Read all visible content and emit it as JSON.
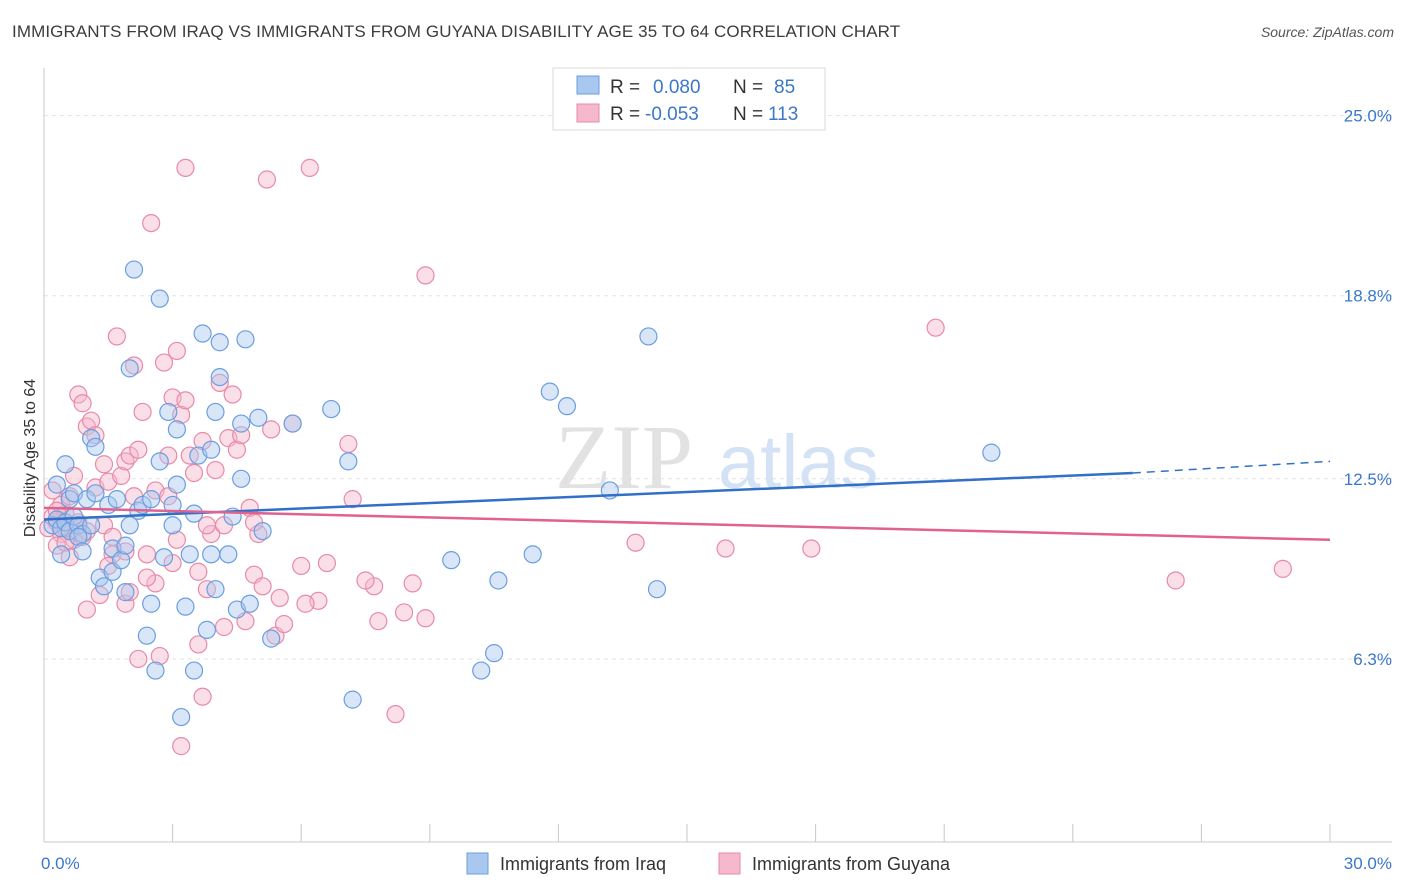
{
  "title": "IMMIGRANTS FROM IRAQ VS IMMIGRANTS FROM GUYANA DISABILITY AGE 35 TO 64 CORRELATION CHART",
  "source": "Source: ZipAtlas.com",
  "watermark": {
    "zip": "ZIP",
    "atlas": "atlas"
  },
  "colors": {
    "iraq_fill": "#a9c8f0",
    "iraq_stroke": "#6b9ee0",
    "iraq_line": "#3270c8",
    "guyana_fill": "#f5b8cc",
    "guyana_stroke": "#e88aa8",
    "guyana_line": "#e0628e",
    "tick_text": "#3b78c8",
    "grid": "#e3e3e3"
  },
  "legend": {
    "row1": {
      "r_label": "R =",
      "r_value": "0.080",
      "n_label": "N =",
      "n_value": "85"
    },
    "row2": {
      "r_label": "R =",
      "r_value": "-0.053",
      "n_label": "N =",
      "n_value": "113"
    }
  },
  "chart_data": {
    "type": "scatter",
    "title": "IMMIGRANTS FROM IRAQ VS IMMIGRANTS FROM GUYANA DISABILITY AGE 35 TO 64 CORRELATION CHART",
    "xlabel": "",
    "ylabel": "Disability Age 35 to 64",
    "xlim": [
      0,
      30
    ],
    "ylim": [
      0,
      26.5
    ],
    "x_tick_labels": [
      "0.0%",
      "30.0%"
    ],
    "y_ticks": [
      6.3,
      12.5,
      18.8,
      25.0
    ],
    "y_tick_labels": [
      "6.3%",
      "12.5%",
      "18.8%",
      "25.0%"
    ],
    "grid": true,
    "legend_position": "top-center",
    "series": [
      {
        "name": "Immigrants from Iraq",
        "r": 0.08,
        "n": 85,
        "trend": {
          "x": [
            0,
            25.4
          ],
          "y": [
            11.1,
            12.7
          ],
          "dashed_to": [
            30,
            13.1
          ]
        },
        "points": [
          [
            0.2,
            10.9
          ],
          [
            0.3,
            11.1
          ],
          [
            0.4,
            10.8
          ],
          [
            0.5,
            11.0
          ],
          [
            0.6,
            10.7
          ],
          [
            0.7,
            11.2
          ],
          [
            0.8,
            10.9
          ],
          [
            0.9,
            10.6
          ],
          [
            0.3,
            12.3
          ],
          [
            0.4,
            9.9
          ],
          [
            0.5,
            13.0
          ],
          [
            0.6,
            11.8
          ],
          [
            0.7,
            12.0
          ],
          [
            0.8,
            10.5
          ],
          [
            1.0,
            11.8
          ],
          [
            1.1,
            10.9
          ],
          [
            1.1,
            13.9
          ],
          [
            1.2,
            13.6
          ],
          [
            1.3,
            9.1
          ],
          [
            1.4,
            8.8
          ],
          [
            1.5,
            11.6
          ],
          [
            1.6,
            10.1
          ],
          [
            1.6,
            9.3
          ],
          [
            1.7,
            11.8
          ],
          [
            1.8,
            9.7
          ],
          [
            1.9,
            8.6
          ],
          [
            1.9,
            10.2
          ],
          [
            2.0,
            10.9
          ],
          [
            2.1,
            19.7
          ],
          [
            2.2,
            11.4
          ],
          [
            2.3,
            11.6
          ],
          [
            2.4,
            7.1
          ],
          [
            2.5,
            8.2
          ],
          [
            2.5,
            11.8
          ],
          [
            2.6,
            5.9
          ],
          [
            2.7,
            18.7
          ],
          [
            2.7,
            13.1
          ],
          [
            2.8,
            9.8
          ],
          [
            2.9,
            14.8
          ],
          [
            3.0,
            11.6
          ],
          [
            3.0,
            10.9
          ],
          [
            3.1,
            14.2
          ],
          [
            3.1,
            12.3
          ],
          [
            3.2,
            4.3
          ],
          [
            3.3,
            8.1
          ],
          [
            3.4,
            9.9
          ],
          [
            3.5,
            11.3
          ],
          [
            3.5,
            5.9
          ],
          [
            3.6,
            13.3
          ],
          [
            3.7,
            17.5
          ],
          [
            3.8,
            7.3
          ],
          [
            3.9,
            13.5
          ],
          [
            4.0,
            14.8
          ],
          [
            4.0,
            8.7
          ],
          [
            4.1,
            17.2
          ],
          [
            4.1,
            16.0
          ],
          [
            4.3,
            9.9
          ],
          [
            4.4,
            11.2
          ],
          [
            4.5,
            8.0
          ],
          [
            4.6,
            12.5
          ],
          [
            4.6,
            14.4
          ],
          [
            4.7,
            17.3
          ],
          [
            4.8,
            8.2
          ],
          [
            5.0,
            14.6
          ],
          [
            5.1,
            10.7
          ],
          [
            5.3,
            7.0
          ],
          [
            5.8,
            14.4
          ],
          [
            6.7,
            14.9
          ],
          [
            7.1,
            13.1
          ],
          [
            7.2,
            4.9
          ],
          [
            9.5,
            9.7
          ],
          [
            10.2,
            5.9
          ],
          [
            10.5,
            6.5
          ],
          [
            10.6,
            9.0
          ],
          [
            11.4,
            9.9
          ],
          [
            11.8,
            15.5
          ],
          [
            12.2,
            15.0
          ],
          [
            13.2,
            12.1
          ],
          [
            14.1,
            17.4
          ],
          [
            14.3,
            8.7
          ],
          [
            22.1,
            13.4
          ],
          [
            3.9,
            9.9
          ],
          [
            1.2,
            12.0
          ],
          [
            2.0,
            16.3
          ],
          [
            0.9,
            10.0
          ]
        ]
      },
      {
        "name": "Immigrants from Guyana",
        "r": -0.053,
        "n": 113,
        "trend": {
          "x": [
            0,
            30
          ],
          "y": [
            11.5,
            10.4
          ]
        },
        "points": [
          [
            0.1,
            10.8
          ],
          [
            0.2,
            11.2
          ],
          [
            0.3,
            11.0
          ],
          [
            0.4,
            10.6
          ],
          [
            0.5,
            11.3
          ],
          [
            0.6,
            10.9
          ],
          [
            0.7,
            10.4
          ],
          [
            0.8,
            11.0
          ],
          [
            0.9,
            10.5
          ],
          [
            1.0,
            10.7
          ],
          [
            0.2,
            12.1
          ],
          [
            0.3,
            10.2
          ],
          [
            0.4,
            11.6
          ],
          [
            0.5,
            10.3
          ],
          [
            0.6,
            11.9
          ],
          [
            0.7,
            12.6
          ],
          [
            0.8,
            15.4
          ],
          [
            0.9,
            15.1
          ],
          [
            1.0,
            14.3
          ],
          [
            1.0,
            8.0
          ],
          [
            1.1,
            14.5
          ],
          [
            1.2,
            12.2
          ],
          [
            1.3,
            8.5
          ],
          [
            1.4,
            10.9
          ],
          [
            1.4,
            13.0
          ],
          [
            1.5,
            12.4
          ],
          [
            1.6,
            9.9
          ],
          [
            1.6,
            10.5
          ],
          [
            1.7,
            17.4
          ],
          [
            1.8,
            12.6
          ],
          [
            1.9,
            8.2
          ],
          [
            1.9,
            13.1
          ],
          [
            2.0,
            13.3
          ],
          [
            2.0,
            8.6
          ],
          [
            2.1,
            11.9
          ],
          [
            2.2,
            13.5
          ],
          [
            2.2,
            6.3
          ],
          [
            2.3,
            14.8
          ],
          [
            2.4,
            9.9
          ],
          [
            2.5,
            21.3
          ],
          [
            2.6,
            12.1
          ],
          [
            2.6,
            8.9
          ],
          [
            2.7,
            6.4
          ],
          [
            2.8,
            16.5
          ],
          [
            2.9,
            13.3
          ],
          [
            3.0,
            15.3
          ],
          [
            3.1,
            16.9
          ],
          [
            3.1,
            10.4
          ],
          [
            3.2,
            14.7
          ],
          [
            3.3,
            15.2
          ],
          [
            3.3,
            23.2
          ],
          [
            3.4,
            13.3
          ],
          [
            3.5,
            12.7
          ],
          [
            3.6,
            9.3
          ],
          [
            3.6,
            6.8
          ],
          [
            3.7,
            13.8
          ],
          [
            3.7,
            5.0
          ],
          [
            3.8,
            8.7
          ],
          [
            3.9,
            10.6
          ],
          [
            4.0,
            12.8
          ],
          [
            4.1,
            15.8
          ],
          [
            4.2,
            10.9
          ],
          [
            4.3,
            13.9
          ],
          [
            4.4,
            15.4
          ],
          [
            4.5,
            13.5
          ],
          [
            4.6,
            14.0
          ],
          [
            4.7,
            7.6
          ],
          [
            4.8,
            11.5
          ],
          [
            4.9,
            9.2
          ],
          [
            5.0,
            10.6
          ],
          [
            5.1,
            8.8
          ],
          [
            5.2,
            22.8
          ],
          [
            5.3,
            14.2
          ],
          [
            5.4,
            7.1
          ],
          [
            5.6,
            7.5
          ],
          [
            5.8,
            14.4
          ],
          [
            6.0,
            9.5
          ],
          [
            6.2,
            23.2
          ],
          [
            6.4,
            8.3
          ],
          [
            6.6,
            9.6
          ],
          [
            7.1,
            13.7
          ],
          [
            7.2,
            11.8
          ],
          [
            7.7,
            8.8
          ],
          [
            7.8,
            7.6
          ],
          [
            8.2,
            4.4
          ],
          [
            8.4,
            7.9
          ],
          [
            8.6,
            8.9
          ],
          [
            8.9,
            7.7
          ],
          [
            8.9,
            19.5
          ],
          [
            13.8,
            10.3
          ],
          [
            15.9,
            10.1
          ],
          [
            17.9,
            10.1
          ],
          [
            20.8,
            17.7
          ],
          [
            26.4,
            9.0
          ],
          [
            28.9,
            9.4
          ],
          [
            0.3,
            11.4
          ],
          [
            0.5,
            10.8
          ],
          [
            0.8,
            10.9
          ],
          [
            1.2,
            14.0
          ],
          [
            1.5,
            9.5
          ],
          [
            2.1,
            16.4
          ],
          [
            2.4,
            9.1
          ],
          [
            3.0,
            9.6
          ],
          [
            3.2,
            3.3
          ],
          [
            3.8,
            10.9
          ],
          [
            4.2,
            7.4
          ],
          [
            4.9,
            11.0
          ],
          [
            5.5,
            8.4
          ],
          [
            6.1,
            8.2
          ],
          [
            7.5,
            9.0
          ],
          [
            1.9,
            10.0
          ],
          [
            0.6,
            9.8
          ],
          [
            2.9,
            11.9
          ]
        ]
      }
    ]
  },
  "bottom_legend": {
    "iraq_label": "Immigrants from Iraq",
    "guyana_label": "Immigrants from Guyana"
  }
}
